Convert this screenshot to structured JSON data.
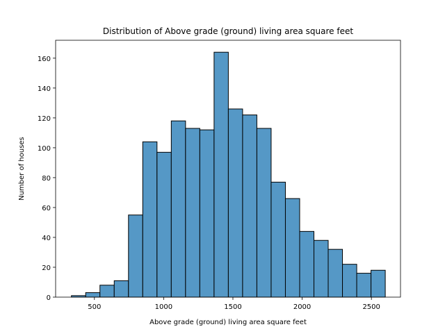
{
  "chart_data": {
    "type": "bar",
    "title": "Distribution of Above grade (ground) living area square feet",
    "xlabel": "Above grade (ground) living area square feet",
    "ylabel": "Number of houses",
    "xlim": [
      220,
      2710
    ],
    "ylim": [
      0,
      172
    ],
    "bar_color": "#5598c6",
    "edge_color": "#000000",
    "x_ticks": [
      500,
      1000,
      1500,
      2000,
      2500
    ],
    "y_ticks": [
      0,
      20,
      40,
      60,
      80,
      100,
      120,
      140,
      160
    ],
    "bins": [
      {
        "x0": 334,
        "x1": 437,
        "count": 1
      },
      {
        "x0": 437,
        "x1": 540,
        "count": 3
      },
      {
        "x0": 540,
        "x1": 643,
        "count": 8
      },
      {
        "x0": 643,
        "x1": 746,
        "count": 11
      },
      {
        "x0": 746,
        "x1": 849,
        "count": 55
      },
      {
        "x0": 849,
        "x1": 952,
        "count": 104
      },
      {
        "x0": 952,
        "x1": 1055,
        "count": 97
      },
      {
        "x0": 1055,
        "x1": 1158,
        "count": 118
      },
      {
        "x0": 1158,
        "x1": 1261,
        "count": 113
      },
      {
        "x0": 1261,
        "x1": 1364,
        "count": 112
      },
      {
        "x0": 1364,
        "x1": 1467,
        "count": 164
      },
      {
        "x0": 1467,
        "x1": 1570,
        "count": 126
      },
      {
        "x0": 1570,
        "x1": 1673,
        "count": 122
      },
      {
        "x0": 1673,
        "x1": 1776,
        "count": 113
      },
      {
        "x0": 1776,
        "x1": 1879,
        "count": 77
      },
      {
        "x0": 1879,
        "x1": 1982,
        "count": 66
      },
      {
        "x0": 1982,
        "x1": 2085,
        "count": 44
      },
      {
        "x0": 2085,
        "x1": 2188,
        "count": 38
      },
      {
        "x0": 2188,
        "x1": 2291,
        "count": 32
      },
      {
        "x0": 2291,
        "x1": 2394,
        "count": 22
      },
      {
        "x0": 2394,
        "x1": 2497,
        "count": 16
      },
      {
        "x0": 2497,
        "x1": 2600,
        "count": 18
      }
    ]
  }
}
